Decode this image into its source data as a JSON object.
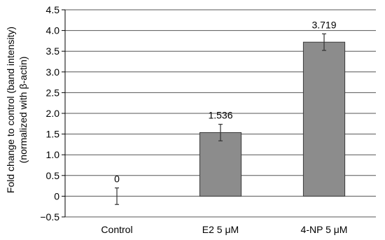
{
  "chart_data": {
    "type": "bar",
    "ylabel_line1": "Fold change to control (band intensity)",
    "ylabel_line2": "(normalized with β-actin)",
    "xlabel": "",
    "title": "",
    "categories": [
      "Control",
      "E2 5 μM",
      "4-NP 5 μM"
    ],
    "values": [
      0,
      1.536,
      3.719
    ],
    "value_labels": [
      "0",
      "1.536",
      "3.719"
    ],
    "errors": [
      0.2,
      0.2,
      0.2
    ],
    "ylim": [
      -0.5,
      4.5
    ],
    "yticks": [
      -0.5,
      0,
      0.5,
      1.0,
      1.5,
      2.0,
      2.5,
      3.0,
      3.5,
      4.0,
      4.5
    ],
    "ytick_labels": [
      "−0.5",
      "0",
      "0.5",
      "1.0",
      "1.5",
      "2.0",
      "2.5",
      "3.0",
      "3.5",
      "4.0",
      "4.5"
    ],
    "grid": true,
    "legend": "none",
    "bar_color": "#8c8c8c",
    "bar_edge_color": "#3a3a3a"
  }
}
